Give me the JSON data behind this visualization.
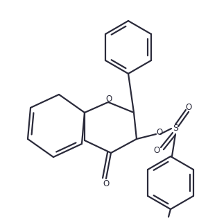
{
  "bg_color": "#ffffff",
  "line_color": "#2a2a3a",
  "line_width": 1.6,
  "figsize": [
    2.87,
    3.18
  ],
  "dpi": 100,
  "xlim": [
    0,
    287
  ],
  "ylim": [
    0,
    318
  ]
}
